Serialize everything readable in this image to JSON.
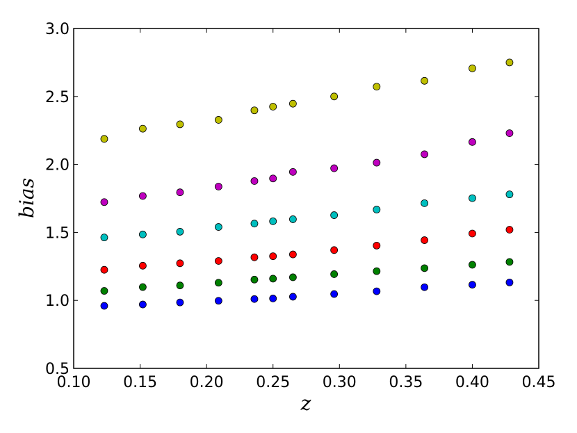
{
  "chart_data": {
    "type": "scatter",
    "title": "",
    "xlabel": "z",
    "ylabel": "bias",
    "xlim": [
      0.1,
      0.45
    ],
    "ylim": [
      0.5,
      3.0
    ],
    "xticks": [
      "0.10",
      "0.15",
      "0.20",
      "0.25",
      "0.30",
      "0.35",
      "0.40",
      "0.45"
    ],
    "yticks": [
      "0.5",
      "1.0",
      "1.5",
      "2.0",
      "2.5",
      "3.0"
    ],
    "grid": false,
    "legend": "none",
    "x": [
      0.123,
      0.152,
      0.18,
      0.209,
      0.236,
      0.25,
      0.265,
      0.296,
      0.328,
      0.364,
      0.4,
      0.428
    ],
    "series": [
      {
        "color": "#0000ff",
        "values": [
          0.96,
          0.97,
          0.985,
          0.997,
          1.01,
          1.014,
          1.027,
          1.047,
          1.067,
          1.097,
          1.115,
          1.132
        ]
      },
      {
        "color": "#008000",
        "values": [
          1.07,
          1.098,
          1.11,
          1.13,
          1.153,
          1.16,
          1.17,
          1.193,
          1.215,
          1.237,
          1.262,
          1.283
        ]
      },
      {
        "color": "#ff0000",
        "values": [
          1.225,
          1.255,
          1.273,
          1.29,
          1.317,
          1.325,
          1.338,
          1.37,
          1.403,
          1.443,
          1.492,
          1.52
        ]
      },
      {
        "color": "#00bfbf",
        "values": [
          1.463,
          1.485,
          1.505,
          1.54,
          1.565,
          1.582,
          1.597,
          1.627,
          1.668,
          1.715,
          1.752,
          1.78
        ]
      },
      {
        "color": "#bf00bf",
        "values": [
          1.723,
          1.768,
          1.795,
          1.837,
          1.878,
          1.897,
          1.945,
          1.972,
          2.013,
          2.075,
          2.165,
          2.23
        ]
      },
      {
        "color": "#bfbf00",
        "values": [
          2.188,
          2.263,
          2.295,
          2.328,
          2.398,
          2.425,
          2.447,
          2.5,
          2.572,
          2.615,
          2.707,
          2.75
        ]
      }
    ]
  }
}
